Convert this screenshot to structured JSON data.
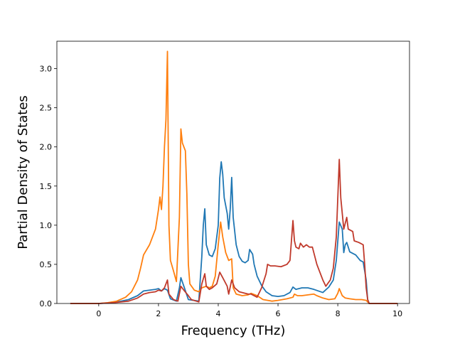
{
  "chart_data": {
    "type": "line",
    "title": "",
    "xlabel": "Frequency (THz)",
    "ylabel": "Partial Density of States",
    "xlim": [
      -1.4,
      10.4
    ],
    "ylim": [
      0,
      3.35
    ],
    "xticks": [
      0,
      2,
      4,
      6,
      8,
      10
    ],
    "yticks": [
      0.0,
      0.5,
      1.0,
      1.5,
      2.0,
      2.5,
      3.0
    ],
    "xtick_labels": [
      "0",
      "2",
      "4",
      "6",
      "8",
      "10"
    ],
    "ytick_labels": [
      "0.0",
      "0.5",
      "1.0",
      "1.5",
      "2.0",
      "2.5",
      "3.0"
    ],
    "grid": false,
    "legend": "none",
    "series": [
      {
        "color": "#1f77b4",
        "points": [
          [
            -0.95,
            0
          ],
          [
            0,
            0
          ],
          [
            0.5,
            0.01
          ],
          [
            1.0,
            0.05
          ],
          [
            1.3,
            0.1
          ],
          [
            1.5,
            0.16
          ],
          [
            1.7,
            0.17
          ],
          [
            1.9,
            0.18
          ],
          [
            2.0,
            0.19
          ],
          [
            2.1,
            0.16
          ],
          [
            2.2,
            0.19
          ],
          [
            2.3,
            0.17
          ],
          [
            2.4,
            0.06
          ],
          [
            2.6,
            0.03
          ],
          [
            2.7,
            0.2
          ],
          [
            2.75,
            0.33
          ],
          [
            2.85,
            0.22
          ],
          [
            3.0,
            0.05
          ],
          [
            3.35,
            0.03
          ],
          [
            3.45,
            0.6
          ],
          [
            3.5,
            1.0
          ],
          [
            3.55,
            1.21
          ],
          [
            3.6,
            0.75
          ],
          [
            3.7,
            0.62
          ],
          [
            3.8,
            0.6
          ],
          [
            3.9,
            0.7
          ],
          [
            4.0,
            1.0
          ],
          [
            4.05,
            1.6
          ],
          [
            4.1,
            1.81
          ],
          [
            4.15,
            1.65
          ],
          [
            4.2,
            1.35
          ],
          [
            4.3,
            1.15
          ],
          [
            4.35,
            0.95
          ],
          [
            4.4,
            1.2
          ],
          [
            4.45,
            1.61
          ],
          [
            4.5,
            1.1
          ],
          [
            4.6,
            0.75
          ],
          [
            4.7,
            0.6
          ],
          [
            4.8,
            0.54
          ],
          [
            4.9,
            0.52
          ],
          [
            5.0,
            0.55
          ],
          [
            5.05,
            0.69
          ],
          [
            5.15,
            0.63
          ],
          [
            5.2,
            0.5
          ],
          [
            5.3,
            0.35
          ],
          [
            5.45,
            0.23
          ],
          [
            5.6,
            0.15
          ],
          [
            5.8,
            0.1
          ],
          [
            6.0,
            0.09
          ],
          [
            6.2,
            0.1
          ],
          [
            6.4,
            0.14
          ],
          [
            6.5,
            0.21
          ],
          [
            6.6,
            0.18
          ],
          [
            6.8,
            0.2
          ],
          [
            7.0,
            0.2
          ],
          [
            7.2,
            0.18
          ],
          [
            7.5,
            0.14
          ],
          [
            7.7,
            0.21
          ],
          [
            7.85,
            0.3
          ],
          [
            7.95,
            0.55
          ],
          [
            8.05,
            1.04
          ],
          [
            8.15,
            0.95
          ],
          [
            8.2,
            0.65
          ],
          [
            8.25,
            0.75
          ],
          [
            8.3,
            0.78
          ],
          [
            8.4,
            0.66
          ],
          [
            8.6,
            0.62
          ],
          [
            8.75,
            0.55
          ],
          [
            8.85,
            0.53
          ],
          [
            8.95,
            0.3
          ],
          [
            9.0,
            0.05
          ],
          [
            9.05,
            0
          ],
          [
            10,
            0
          ]
        ]
      },
      {
        "color": "#ff7f0e",
        "points": [
          [
            -0.95,
            0
          ],
          [
            0,
            0
          ],
          [
            0.3,
            0.01
          ],
          [
            0.6,
            0.03
          ],
          [
            0.9,
            0.08
          ],
          [
            1.1,
            0.15
          ],
          [
            1.3,
            0.3
          ],
          [
            1.4,
            0.45
          ],
          [
            1.5,
            0.62
          ],
          [
            1.7,
            0.75
          ],
          [
            1.9,
            0.95
          ],
          [
            2.0,
            1.2
          ],
          [
            2.05,
            1.36
          ],
          [
            2.1,
            1.2
          ],
          [
            2.15,
            1.5
          ],
          [
            2.2,
            2.0
          ],
          [
            2.25,
            2.35
          ],
          [
            2.3,
            3.22
          ],
          [
            2.35,
            1.0
          ],
          [
            2.4,
            0.55
          ],
          [
            2.5,
            0.42
          ],
          [
            2.6,
            0.28
          ],
          [
            2.7,
            1.1
          ],
          [
            2.75,
            2.23
          ],
          [
            2.8,
            2.05
          ],
          [
            2.9,
            1.95
          ],
          [
            2.95,
            1.4
          ],
          [
            3.0,
            0.5
          ],
          [
            3.05,
            0.25
          ],
          [
            3.2,
            0.17
          ],
          [
            3.35,
            0.15
          ],
          [
            3.45,
            0.2
          ],
          [
            3.6,
            0.22
          ],
          [
            3.7,
            0.2
          ],
          [
            3.8,
            0.22
          ],
          [
            3.9,
            0.35
          ],
          [
            4.0,
            0.75
          ],
          [
            4.08,
            1.04
          ],
          [
            4.15,
            0.85
          ],
          [
            4.25,
            0.65
          ],
          [
            4.35,
            0.55
          ],
          [
            4.45,
            0.57
          ],
          [
            4.5,
            0.2
          ],
          [
            4.6,
            0.12
          ],
          [
            4.8,
            0.1
          ],
          [
            5.0,
            0.11
          ],
          [
            5.1,
            0.13
          ],
          [
            5.3,
            0.1
          ],
          [
            5.5,
            0.05
          ],
          [
            5.8,
            0.03
          ],
          [
            6.0,
            0.04
          ],
          [
            6.3,
            0.06
          ],
          [
            6.5,
            0.08
          ],
          [
            6.55,
            0.12
          ],
          [
            6.65,
            0.1
          ],
          [
            6.8,
            0.1
          ],
          [
            7.0,
            0.11
          ],
          [
            7.2,
            0.12
          ],
          [
            7.3,
            0.1
          ],
          [
            7.5,
            0.07
          ],
          [
            7.7,
            0.05
          ],
          [
            7.9,
            0.06
          ],
          [
            8.0,
            0.13
          ],
          [
            8.05,
            0.19
          ],
          [
            8.15,
            0.1
          ],
          [
            8.25,
            0.07
          ],
          [
            8.4,
            0.06
          ],
          [
            8.6,
            0.05
          ],
          [
            8.8,
            0.05
          ],
          [
            8.95,
            0.04
          ],
          [
            9.0,
            0.02
          ],
          [
            9.05,
            0
          ],
          [
            10,
            0
          ]
        ]
      },
      {
        "color": "#c0392b",
        "points": [
          [
            -0.95,
            0
          ],
          [
            0,
            0
          ],
          [
            0.5,
            0.01
          ],
          [
            1.0,
            0.03
          ],
          [
            1.3,
            0.07
          ],
          [
            1.5,
            0.12
          ],
          [
            1.7,
            0.14
          ],
          [
            1.9,
            0.15
          ],
          [
            2.0,
            0.17
          ],
          [
            2.1,
            0.16
          ],
          [
            2.2,
            0.2
          ],
          [
            2.3,
            0.3
          ],
          [
            2.35,
            0.12
          ],
          [
            2.5,
            0.05
          ],
          [
            2.65,
            0.03
          ],
          [
            2.75,
            0.22
          ],
          [
            2.85,
            0.17
          ],
          [
            3.0,
            0.1
          ],
          [
            3.1,
            0.05
          ],
          [
            3.35,
            0.02
          ],
          [
            3.45,
            0.25
          ],
          [
            3.55,
            0.38
          ],
          [
            3.6,
            0.22
          ],
          [
            3.7,
            0.18
          ],
          [
            3.8,
            0.2
          ],
          [
            3.95,
            0.25
          ],
          [
            4.05,
            0.4
          ],
          [
            4.15,
            0.33
          ],
          [
            4.3,
            0.22
          ],
          [
            4.35,
            0.12
          ],
          [
            4.45,
            0.3
          ],
          [
            4.55,
            0.2
          ],
          [
            4.7,
            0.15
          ],
          [
            5.0,
            0.12
          ],
          [
            5.1,
            0.12
          ],
          [
            5.3,
            0.08
          ],
          [
            5.45,
            0.2
          ],
          [
            5.6,
            0.38
          ],
          [
            5.65,
            0.5
          ],
          [
            5.75,
            0.48
          ],
          [
            5.9,
            0.48
          ],
          [
            6.1,
            0.47
          ],
          [
            6.3,
            0.5
          ],
          [
            6.4,
            0.55
          ],
          [
            6.5,
            1.06
          ],
          [
            6.55,
            0.8
          ],
          [
            6.6,
            0.72
          ],
          [
            6.7,
            0.7
          ],
          [
            6.75,
            0.77
          ],
          [
            6.85,
            0.72
          ],
          [
            6.95,
            0.75
          ],
          [
            7.05,
            0.72
          ],
          [
            7.15,
            0.72
          ],
          [
            7.3,
            0.5
          ],
          [
            7.5,
            0.3
          ],
          [
            7.6,
            0.22
          ],
          [
            7.75,
            0.3
          ],
          [
            7.85,
            0.45
          ],
          [
            7.95,
            0.85
          ],
          [
            8.05,
            1.84
          ],
          [
            8.1,
            1.35
          ],
          [
            8.2,
            0.95
          ],
          [
            8.3,
            1.1
          ],
          [
            8.35,
            0.95
          ],
          [
            8.5,
            0.92
          ],
          [
            8.55,
            0.8
          ],
          [
            8.7,
            0.78
          ],
          [
            8.85,
            0.75
          ],
          [
            8.9,
            0.5
          ],
          [
            8.95,
            0.2
          ],
          [
            9.0,
            0.05
          ],
          [
            9.05,
            0
          ],
          [
            10,
            0
          ]
        ]
      }
    ]
  }
}
